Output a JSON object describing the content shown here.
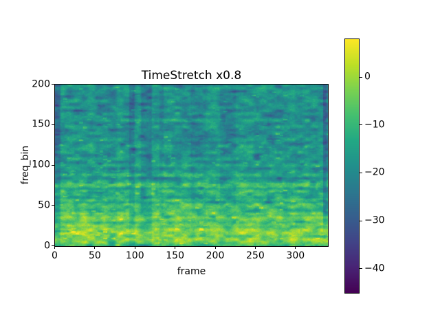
{
  "figure": {
    "background": "#ffffff",
    "text_color": "#000000"
  },
  "chart_data": {
    "type": "heatmap",
    "title": "TimeStretch x0.8",
    "xlabel": "frame",
    "ylabel": "freq_bin",
    "x_range": [
      0,
      340
    ],
    "y_range": [
      0,
      200
    ],
    "n_frames": 341,
    "n_bins": 201,
    "colormap": "viridis",
    "vmin": -45,
    "vmax": 8,
    "grid": false,
    "legend": "none",
    "colorbar_position": "right",
    "xticks": {
      "values": [
        0,
        50,
        100,
        150,
        200,
        250,
        300
      ],
      "labels": [
        "0",
        "50",
        "100",
        "150",
        "200",
        "250",
        "300"
      ]
    },
    "yticks": {
      "values": [
        0,
        50,
        100,
        150,
        200
      ],
      "labels": [
        "0",
        "50",
        "100",
        "150",
        "200"
      ]
    },
    "colorbar_ticks": {
      "values": [
        0,
        -10,
        -20,
        -30,
        -40
      ],
      "labels": [
        "0",
        "−10",
        "−20",
        "−30",
        "−40"
      ]
    },
    "viridis_anchors": [
      [
        68,
        1,
        84
      ],
      [
        72,
        36,
        117
      ],
      [
        65,
        68,
        135
      ],
      [
        54,
        95,
        141
      ],
      [
        43,
        120,
        142
      ],
      [
        33,
        144,
        140
      ],
      [
        34,
        168,
        132
      ],
      [
        68,
        191,
        112
      ],
      [
        122,
        209,
        81
      ],
      [
        189,
        223,
        38
      ],
      [
        253,
        231,
        37
      ]
    ],
    "procedural_model": {
      "comment": "estimated dB content of the spectrogram: freq profile control points [bin, dB] plus block-noise texture parameters",
      "freq_profile_db": [
        [
          0,
          -10
        ],
        [
          2,
          -6
        ],
        [
          5,
          -1
        ],
        [
          8,
          0
        ],
        [
          10,
          -2
        ],
        [
          12,
          -4
        ],
        [
          14,
          -1
        ],
        [
          17,
          0
        ],
        [
          20,
          -1
        ],
        [
          23,
          -5
        ],
        [
          26,
          -3
        ],
        [
          29,
          -7
        ],
        [
          32,
          -4
        ],
        [
          35,
          -2
        ],
        [
          38,
          -6
        ],
        [
          40,
          -4
        ],
        [
          44,
          -10
        ],
        [
          48,
          -8
        ],
        [
          51,
          -6
        ],
        [
          54,
          -11
        ],
        [
          57,
          -8
        ],
        [
          60,
          -13
        ],
        [
          64,
          -10
        ],
        [
          68,
          -9
        ],
        [
          71,
          -14
        ],
        [
          74,
          -6
        ],
        [
          77,
          -5
        ],
        [
          80,
          -13
        ],
        [
          84,
          -16
        ],
        [
          88,
          -11
        ],
        [
          92,
          -15
        ],
        [
          96,
          -17
        ],
        [
          100,
          -12
        ],
        [
          104,
          -17
        ],
        [
          108,
          -14
        ],
        [
          112,
          -18
        ],
        [
          116,
          -15
        ],
        [
          120,
          -18
        ],
        [
          124,
          -14
        ],
        [
          128,
          -18
        ],
        [
          132,
          -15
        ],
        [
          136,
          -19
        ],
        [
          140,
          -16
        ],
        [
          144,
          -19
        ],
        [
          148,
          -15
        ],
        [
          152,
          -19
        ],
        [
          156,
          -14
        ],
        [
          160,
          -19
        ],
        [
          164,
          -16
        ],
        [
          168,
          -19
        ],
        [
          172,
          -16
        ],
        [
          176,
          -19
        ],
        [
          180,
          -15
        ],
        [
          184,
          -19
        ],
        [
          188,
          -16
        ],
        [
          192,
          -18
        ],
        [
          196,
          -15
        ],
        [
          200,
          -17
        ]
      ],
      "seed": 1337,
      "block": {
        "w": 9,
        "h": 4,
        "amp": 5.5
      },
      "fine_block": {
        "w": 3.2,
        "h": 1.8,
        "amp": 2.5
      },
      "deep_blotch": {
        "w": 14,
        "h": 6,
        "threshold": 0.78,
        "gain": 45
      },
      "sparkle": {
        "w": 5,
        "h": 2,
        "threshold": 0.955,
        "gain": 180
      },
      "pixel_jitter": 1.8,
      "time_envelope": {
        "seg_min": 5,
        "seg_max": 17,
        "quiet_prob": 0.3,
        "quiet_db_max": 9
      },
      "right_dark_band": {
        "f_start": 334,
        "f_soft": 339,
        "db": 9
      }
    }
  }
}
